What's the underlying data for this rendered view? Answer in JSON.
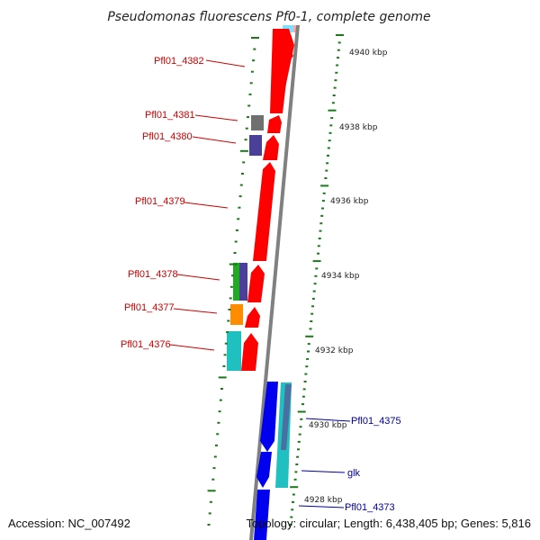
{
  "title": "Pseudomonas fluorescens Pf0-1, complete genome",
  "footer": {
    "accession": "Accession: NC_007492",
    "summary": "Topology: circular; Length: 6,438,405 bp; Genes: 5,816"
  },
  "colors": {
    "forward_label": "#cc0000",
    "reverse_label": "#000099",
    "ticks": "#1a7a1a",
    "backbone": "#808080"
  },
  "ticks": [
    {
      "label": "4940 kbp"
    },
    {
      "label": "4938 kbp"
    },
    {
      "label": "4936 kbp"
    },
    {
      "label": "4934 kbp"
    },
    {
      "label": "4932 kbp"
    },
    {
      "label": "4930 kbp"
    },
    {
      "label": "4928 kbp"
    }
  ],
  "forward_genes": [
    {
      "label": "Pfl01_4382",
      "color": "#ff0000"
    },
    {
      "label": "Pfl01_4381",
      "color": "#ff0000"
    },
    {
      "label": "Pfl01_4380",
      "color": "#ff0000"
    },
    {
      "label": "Pfl01_4379",
      "color": "#ff0000"
    },
    {
      "label": "Pfl01_4378",
      "color": "#ff0000"
    },
    {
      "label": "Pfl01_4377",
      "color": "#ff0000"
    },
    {
      "label": "Pfl01_4376",
      "color": "#ff0000"
    }
  ],
  "reverse_genes": [
    {
      "label": "Pfl01_4375",
      "color": "#0000ee"
    },
    {
      "label": "glk",
      "color": "#0000ee"
    },
    {
      "label": "Pfl01_4373",
      "color": "#0000ee"
    }
  ],
  "feature_colors": [
    "#707070",
    "#4a3f99",
    "#22aa22",
    "#ff8c00",
    "#20c0c0",
    "#80e0ff",
    "#ffaaaa"
  ]
}
